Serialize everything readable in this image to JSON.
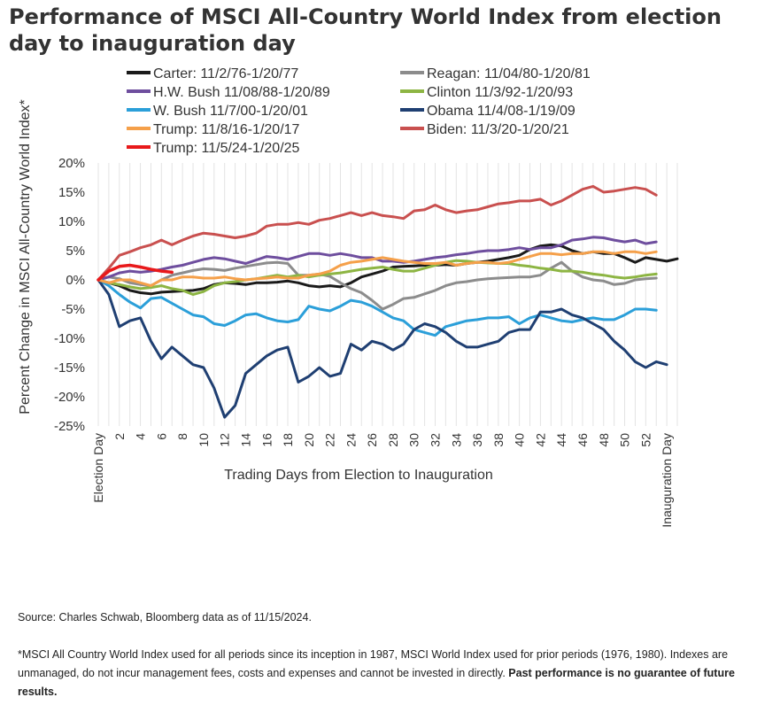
{
  "title": "Performance of MSCI All-Country World Index from election day to inauguration day",
  "source": "Source: Charles Schwab, Bloomberg data as of 11/15/2024.",
  "footnote": {
    "text": "*MSCI All Country World Index used for all periods since its inception in 1987, MSCI World Index used for prior periods (1976, 1980). Indexes are unmanaged, do not incur management fees, costs and expenses and cannot be invested in directly.",
    "bold": "Past performance is no guarantee of future results."
  },
  "chart_data": {
    "type": "line",
    "xlabel": "Trading Days from Election to Inauguration",
    "ylabel": "Percent Change in MSCI All-Country World Index*",
    "xlim": [
      0,
      55
    ],
    "ylim": [
      -25,
      20
    ],
    "y_ticks": [
      20,
      15,
      10,
      5,
      0,
      -5,
      -10,
      -15,
      -20,
      -25
    ],
    "y_tick_labels": [
      "20%",
      "15%",
      "10%",
      "5%",
      "0%",
      "-5%",
      "-10%",
      "-15%",
      "-20%",
      "-25%"
    ],
    "x_ticks": [
      0,
      2,
      4,
      6,
      8,
      10,
      12,
      14,
      16,
      18,
      20,
      22,
      24,
      26,
      28,
      30,
      32,
      34,
      36,
      38,
      40,
      42,
      44,
      46,
      48,
      50,
      52,
      54
    ],
    "x_tick_labels": [
      "Election Day",
      "2",
      "4",
      "6",
      "8",
      "10",
      "12",
      "14",
      "16",
      "18",
      "20",
      "22",
      "24",
      "26",
      "28",
      "30",
      "32",
      "34",
      "36",
      "38",
      "40",
      "42",
      "44",
      "46",
      "48",
      "50",
      "52",
      "Inauguration Day"
    ],
    "grid": "vertical",
    "legend": "top",
    "series": [
      {
        "name": "Carter: 11/2/76-1/20/77",
        "color": "#1a1a1a",
        "values": [
          0,
          -0.5,
          -1,
          -1.8,
          -2.2,
          -2.4,
          -2.1,
          -2,
          -1.9,
          -1.8,
          -1.5,
          -0.8,
          -0.5,
          -0.6,
          -0.8,
          -0.5,
          -0.5,
          -0.4,
          -0.2,
          -0.5,
          -1,
          -1.2,
          -1,
          -1.2,
          -0.5,
          0.5,
          1,
          1.5,
          2.2,
          2.3,
          2.4,
          2.5,
          2.5,
          2.6,
          2.5,
          2.8,
          3,
          3.2,
          3.5,
          3.8,
          4.2,
          5.2,
          5.8,
          6,
          5.8,
          5,
          4.5,
          4.8,
          4.5,
          4.5,
          3.8,
          3,
          3.8,
          3.5,
          3.2,
          3.6
        ]
      },
      {
        "name": "Reagan: 11/04/80-1/20/81",
        "color": "#8c8c8c",
        "values": [
          0,
          0.5,
          0.2,
          -0.5,
          -0.8,
          -1,
          0,
          0.8,
          1.2,
          1.6,
          1.9,
          1.8,
          1.6,
          2,
          2.3,
          2.6,
          2.9,
          3,
          2.8,
          0.8,
          0.8,
          1,
          0.6,
          -0.5,
          -1.5,
          -2.2,
          -3.5,
          -5,
          -4.2,
          -3.2,
          -3,
          -2.4,
          -1.8,
          -1,
          -0.5,
          -0.3,
          0,
          0.2,
          0.3,
          0.4,
          0.5,
          0.5,
          0.8,
          2,
          3,
          1.5,
          0.5,
          0,
          -0.2,
          -0.8,
          -0.6,
          0,
          0.2,
          0.3
        ]
      },
      {
        "name": "H.W. Bush 11/08/88-1/20/89",
        "color": "#6e4e9e",
        "values": [
          0,
          0.5,
          1.2,
          1.5,
          1.3,
          1.5,
          1.8,
          2.2,
          2.5,
          3,
          3.5,
          3.8,
          3.6,
          3.2,
          2.8,
          3.4,
          4,
          3.8,
          3.5,
          4,
          4.5,
          4.5,
          4.2,
          4.5,
          4.2,
          3.8,
          3.8,
          3.2,
          3.2,
          3,
          3.2,
          3.5,
          3.8,
          4,
          4.3,
          4.5,
          4.8,
          5,
          5,
          5.2,
          5.5,
          5.2,
          5.5,
          5.5,
          6,
          6.8,
          7,
          7.3,
          7.2,
          6.8,
          6.5,
          6.8,
          6.2,
          6.5
        ]
      },
      {
        "name": "Clinton 11/3/92-1/20/93",
        "color": "#8db543",
        "values": [
          0,
          -0.5,
          -0.8,
          -1.2,
          -1.5,
          -1.3,
          -1,
          -1.5,
          -1.8,
          -2.5,
          -2,
          -1,
          -0.5,
          -0.3,
          0,
          0.2,
          0.5,
          0.8,
          0.5,
          0.8,
          0.5,
          0.8,
          1,
          1.2,
          1.5,
          1.8,
          2,
          2.2,
          1.8,
          1.5,
          1.5,
          2,
          2.5,
          3,
          3.3,
          3.2,
          3,
          2.9,
          2.8,
          2.8,
          2.5,
          2.3,
          2,
          1.8,
          1.5,
          1.5,
          1.3,
          1,
          0.8,
          0.5,
          0.3,
          0.5,
          0.8,
          1
        ]
      },
      {
        "name": "W. Bush 11/7/00-1/20/01",
        "color": "#2b9fd9",
        "values": [
          0,
          -1,
          -2.5,
          -3.8,
          -4.8,
          -3.2,
          -3,
          -4,
          -5,
          -6,
          -6.3,
          -7.5,
          -7.8,
          -7,
          -6,
          -5.8,
          -6.5,
          -7,
          -7.2,
          -6.8,
          -4.5,
          -5,
          -5.3,
          -4.5,
          -3.5,
          -3.8,
          -4.5,
          -5.5,
          -6.5,
          -7,
          -8.5,
          -9,
          -9.5,
          -8,
          -7.5,
          -7,
          -6.8,
          -6.5,
          -6.5,
          -6.3,
          -7.5,
          -6.5,
          -6,
          -6.5,
          -7,
          -7.2,
          -6.8,
          -6.5,
          -6.8,
          -6.8,
          -6,
          -5,
          -5,
          -5.2
        ]
      },
      {
        "name": "Obama 11/4/08-1/19/09",
        "color": "#1f3f72",
        "values": [
          0,
          -2.5,
          -8,
          -7,
          -6.5,
          -10.5,
          -13.5,
          -11.5,
          -13,
          -14.5,
          -15,
          -18.5,
          -23.5,
          -21.5,
          -16,
          -14.5,
          -13,
          -12,
          -11.5,
          -17.5,
          -16.5,
          -15,
          -16.5,
          -16,
          -11,
          -12,
          -10.5,
          -11,
          -12,
          -11,
          -8.5,
          -7.5,
          -8,
          -9,
          -10.5,
          -11.5,
          -11.5,
          -11,
          -10.5,
          -9,
          -8.5,
          -8.5,
          -5.5,
          -5.5,
          -5,
          -6,
          -6.5,
          -7.5,
          -8.5,
          -10.5,
          -12,
          -14,
          -15,
          -14,
          -14.5
        ]
      },
      {
        "name": "Trump: 11/8/16-1/20/17",
        "color": "#f5a04a",
        "values": [
          0,
          -0.5,
          0,
          0,
          -0.5,
          -1,
          0,
          0,
          0.5,
          0.5,
          0.3,
          0.3,
          0.5,
          0.2,
          0,
          0.2,
          0.3,
          0.5,
          0.3,
          0.3,
          0.8,
          1,
          1.5,
          2.5,
          3,
          3.2,
          3.5,
          3.8,
          3.5,
          3.2,
          3,
          2.8,
          2.8,
          3,
          2.5,
          2.8,
          3,
          3,
          2.8,
          3,
          3.5,
          4,
          4.5,
          4.5,
          4.3,
          4.5,
          4.5,
          4.8,
          4.8,
          4.5,
          4.8,
          4.8,
          4.5,
          4.8
        ]
      },
      {
        "name": "Biden: 11/3/20-1/20/21",
        "color": "#c9504f",
        "values": [
          0,
          2,
          4.2,
          4.8,
          5.5,
          6,
          6.8,
          6,
          6.8,
          7.5,
          8,
          7.8,
          7.5,
          7.2,
          7.5,
          8,
          9.2,
          9.5,
          9.5,
          9.8,
          9.5,
          10.2,
          10.5,
          11,
          11.5,
          11,
          11.5,
          11,
          10.8,
          10.5,
          11.8,
          12,
          12.8,
          12,
          11.5,
          11.8,
          12,
          12.5,
          13,
          13.2,
          13.5,
          13.5,
          13.8,
          12.8,
          13.5,
          14.5,
          15.5,
          16,
          15,
          15.2,
          15.5,
          15.8,
          15.5,
          14.5
        ]
      },
      {
        "name": "Trump: 11/5/24-1/20/25",
        "color": "#e8191b",
        "values": [
          0,
          1.5,
          2.3,
          2.5,
          2.2,
          1.8,
          1.5,
          1.3
        ]
      }
    ]
  }
}
